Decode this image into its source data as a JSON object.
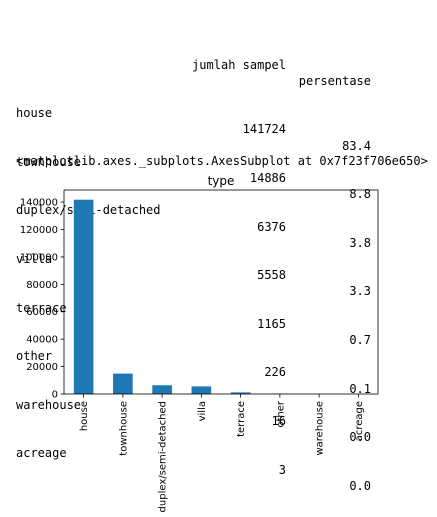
{
  "table": {
    "headers": [
      "jumlah sampel",
      "persentase"
    ],
    "rows": [
      {
        "label": "house",
        "count": "141724",
        "pct": "83.4"
      },
      {
        "label": "townhouse",
        "count": "14886",
        "pct": "8.8"
      },
      {
        "label": "duplex/semi-detached",
        "count": "6376",
        "pct": "3.8"
      },
      {
        "label": "villa",
        "count": "5558",
        "pct": "3.3"
      },
      {
        "label": "terrace",
        "count": "1165",
        "pct": "0.7"
      },
      {
        "label": "other",
        "count": "226",
        "pct": "0.1"
      },
      {
        "label": "warehouse",
        "count": "16",
        "pct": "0.0"
      },
      {
        "label": "acreage",
        "count": "3",
        "pct": "0.0"
      }
    ]
  },
  "repr_text": "<matplotlib.axes._subplots.AxesSubplot at 0x7f23f706e650>",
  "chart_data": {
    "type": "bar",
    "title": "type",
    "xlabel": "",
    "ylabel": "",
    "categories": [
      "house",
      "townhouse",
      "duplex/semi-detached",
      "villa",
      "terrace",
      "other",
      "warehouse",
      "acreage"
    ],
    "values": [
      141724,
      14886,
      6376,
      5558,
      1165,
      226,
      16,
      3
    ],
    "ylim": [
      0,
      148810
    ],
    "yticks": [
      0,
      20000,
      40000,
      60000,
      80000,
      100000,
      120000,
      140000
    ],
    "bar_color": "#1f77b4",
    "grid": false,
    "legend": "none"
  }
}
